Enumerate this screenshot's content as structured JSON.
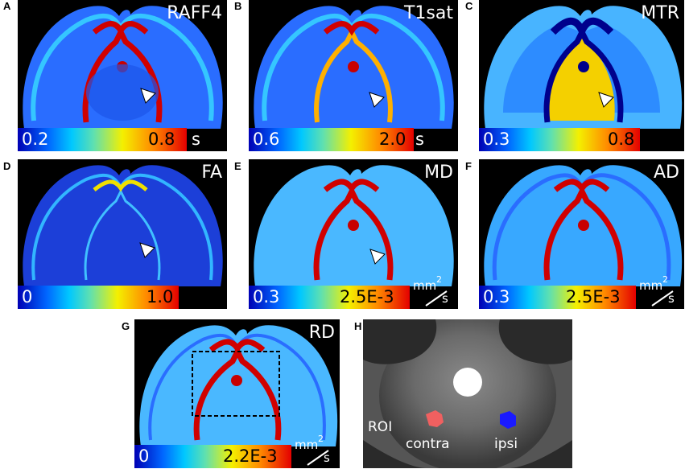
{
  "figure": {
    "panels": [
      {
        "letter": "A",
        "title": "RAFF4",
        "scale_min": "0.2",
        "scale_max": "0.8",
        "unit": "s",
        "has_arrow": true
      },
      {
        "letter": "B",
        "title": "T1sat",
        "scale_min": "0.6",
        "scale_max": "2.0",
        "unit": "s",
        "has_arrow": true
      },
      {
        "letter": "C",
        "title": "MTR",
        "scale_min": "0.3",
        "scale_max": "0.8",
        "unit": "",
        "has_arrow": true
      },
      {
        "letter": "D",
        "title": "FA",
        "scale_min": "0",
        "scale_max": "1.0",
        "unit": "",
        "has_arrow": true
      },
      {
        "letter": "E",
        "title": "MD",
        "scale_min": "0.3",
        "scale_max": "2.5E-3",
        "unit": "mm²/s",
        "unit_top": "mm",
        "unit_sup": "2",
        "unit_bottom": "s",
        "has_arrow": true
      },
      {
        "letter": "F",
        "title": "AD",
        "scale_min": "0.3",
        "scale_max": "2.5E-3",
        "unit": "mm²/s",
        "unit_top": "mm",
        "unit_sup": "2",
        "unit_bottom": "s",
        "has_arrow": false
      },
      {
        "letter": "G",
        "title": "RD",
        "scale_min": "0",
        "scale_max": "2.2E-3",
        "unit": "mm²/s",
        "unit_top": "mm",
        "unit_sup": "2",
        "unit_bottom": "s",
        "has_arrow": false
      }
    ],
    "inset": {
      "letter": "H",
      "labels": {
        "roi": "ROI",
        "contra": "contra",
        "ipsi": "ipsi"
      },
      "colors": {
        "contra": "#f06060",
        "ipsi": "#1a1aff"
      }
    },
    "colormap": [
      "#0000b4",
      "#0066ff",
      "#00c8ff",
      "#5fe0b0",
      "#f4f000",
      "#ff8a00",
      "#e40000"
    ]
  }
}
